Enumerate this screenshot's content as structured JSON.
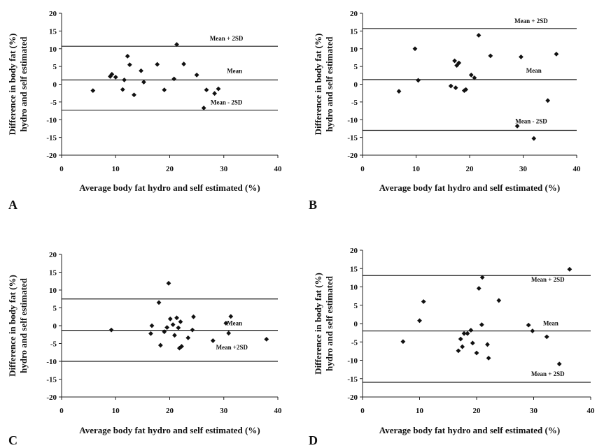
{
  "chart_data": [
    {
      "type": "scatter",
      "panel_label": "A",
      "xlabel": "Average body fat hydro and self estimated (%)",
      "ylabel": [
        "Difference in body fat (%)",
        "hydro and self estimated"
      ],
      "xlim": [
        0,
        40
      ],
      "ylim": [
        -20,
        20
      ],
      "xticks": [
        0,
        10,
        20,
        30,
        40
      ],
      "yticks": [
        20,
        15,
        10,
        5,
        0,
        -5,
        -10,
        -15,
        -20
      ],
      "grid": false,
      "marker_color": "#111111",
      "reference_lines": [
        {
          "label": "Mean + 2SD",
          "value": 10.7
        },
        {
          "label": "Mean",
          "value": 1.2
        },
        {
          "label": "Mean - 2SD",
          "value": -7.3
        }
      ],
      "points": [
        {
          "x": 5.8,
          "y": -1.8
        },
        {
          "x": 9.0,
          "y": 2.2
        },
        {
          "x": 9.3,
          "y": 2.8
        },
        {
          "x": 10.0,
          "y": 2.0
        },
        {
          "x": 11.3,
          "y": -1.5
        },
        {
          "x": 11.6,
          "y": 1.2
        },
        {
          "x": 12.2,
          "y": 7.9
        },
        {
          "x": 12.6,
          "y": 5.5
        },
        {
          "x": 13.4,
          "y": -3.0
        },
        {
          "x": 14.7,
          "y": 3.8
        },
        {
          "x": 15.2,
          "y": 0.6
        },
        {
          "x": 17.7,
          "y": 5.6
        },
        {
          "x": 19.0,
          "y": -1.6
        },
        {
          "x": 20.8,
          "y": 1.5
        },
        {
          "x": 21.3,
          "y": 11.2
        },
        {
          "x": 22.6,
          "y": 5.7
        },
        {
          "x": 25.0,
          "y": 2.6
        },
        {
          "x": 26.3,
          "y": -6.7
        },
        {
          "x": 26.8,
          "y": -1.6
        },
        {
          "x": 28.3,
          "y": -2.6
        },
        {
          "x": 29.0,
          "y": -1.3
        }
      ]
    },
    {
      "type": "scatter",
      "panel_label": "B",
      "xlabel": "Average body fat hydro and self estimated (%)",
      "ylabel": [
        "Difference in body fat (%)",
        "hydro and self estimated"
      ],
      "xlim": [
        0,
        40
      ],
      "ylim": [
        -20,
        20
      ],
      "xticks": [
        0,
        10,
        20,
        30,
        40
      ],
      "yticks": [
        20,
        15,
        10,
        5,
        0,
        -5,
        -10,
        -15,
        -20
      ],
      "grid": false,
      "marker_color": "#111111",
      "reference_lines": [
        {
          "label": "Mean + 2SD",
          "value": 15.7
        },
        {
          "label": "Mean",
          "value": 1.3
        },
        {
          "label": "Mean - 2SD",
          "value": -13.0
        }
      ],
      "points": [
        {
          "x": 6.8,
          "y": -2.0
        },
        {
          "x": 9.8,
          "y": 10.0
        },
        {
          "x": 10.4,
          "y": 1.1
        },
        {
          "x": 16.5,
          "y": -0.5
        },
        {
          "x": 17.2,
          "y": 6.6
        },
        {
          "x": 17.4,
          "y": -1.0
        },
        {
          "x": 17.6,
          "y": 5.3
        },
        {
          "x": 18.0,
          "y": 6.0
        },
        {
          "x": 19.0,
          "y": -1.8
        },
        {
          "x": 19.3,
          "y": -1.5
        },
        {
          "x": 20.3,
          "y": 2.6
        },
        {
          "x": 20.9,
          "y": 1.8
        },
        {
          "x": 21.7,
          "y": 13.8
        },
        {
          "x": 23.9,
          "y": 8.0
        },
        {
          "x": 28.9,
          "y": -11.8
        },
        {
          "x": 29.6,
          "y": 7.7
        },
        {
          "x": 32.0,
          "y": -15.3
        },
        {
          "x": 34.6,
          "y": -4.6
        },
        {
          "x": 36.2,
          "y": 8.5
        }
      ]
    },
    {
      "type": "scatter",
      "panel_label": "C",
      "xlabel": "Average body fat hydro and self estimated (%)",
      "ylabel": [
        "Difference in body fat (%)",
        "hydro and self estimated"
      ],
      "xlim": [
        0,
        40
      ],
      "ylim": [
        -20,
        20
      ],
      "xticks": [
        0,
        10,
        20,
        30,
        40
      ],
      "yticks": [
        20,
        15,
        10,
        5,
        0,
        -5,
        -10,
        -15,
        -20
      ],
      "grid": false,
      "marker_color": "#111111",
      "reference_lines": [
        {
          "label": "",
          "value": 7.5
        },
        {
          "label": "Mean",
          "value": -1.3
        },
        {
          "label": "Mean +2SD",
          "value": -10.0
        }
      ],
      "points": [
        {
          "x": 9.2,
          "y": -1.2
        },
        {
          "x": 16.5,
          "y": -2.2
        },
        {
          "x": 16.7,
          "y": 0.0
        },
        {
          "x": 18.0,
          "y": 6.5
        },
        {
          "x": 18.3,
          "y": -5.5
        },
        {
          "x": 19.0,
          "y": -1.7
        },
        {
          "x": 19.5,
          "y": -0.5
        },
        {
          "x": 19.8,
          "y": 11.9
        },
        {
          "x": 20.1,
          "y": 1.9
        },
        {
          "x": 20.6,
          "y": 0.3
        },
        {
          "x": 20.9,
          "y": -2.7
        },
        {
          "x": 21.3,
          "y": 2.2
        },
        {
          "x": 21.6,
          "y": -0.6
        },
        {
          "x": 21.8,
          "y": -6.3
        },
        {
          "x": 22.0,
          "y": 1.1
        },
        {
          "x": 22.2,
          "y": -5.8
        },
        {
          "x": 23.4,
          "y": -3.4
        },
        {
          "x": 24.2,
          "y": -1.2
        },
        {
          "x": 24.4,
          "y": 2.5
        },
        {
          "x": 28.0,
          "y": -4.2
        },
        {
          "x": 30.4,
          "y": 0.7
        },
        {
          "x": 30.9,
          "y": -2.1
        },
        {
          "x": 31.3,
          "y": 2.6
        },
        {
          "x": 37.9,
          "y": -3.8
        }
      ]
    },
    {
      "type": "scatter",
      "panel_label": "D",
      "xlabel": "Average body fat hydro and self estimated (%)",
      "ylabel": [
        "Difference in body fat (%)",
        "hydro and self estimated"
      ],
      "xlim": [
        0,
        40
      ],
      "ylim": [
        -20,
        20
      ],
      "xticks": [
        0,
        10,
        20,
        30,
        40
      ],
      "yticks": [
        20,
        15,
        10,
        5,
        0,
        -5,
        -10,
        -15,
        -20
      ],
      "grid": false,
      "marker_color": "#111111",
      "reference_lines": [
        {
          "label": "Mean + 2SD",
          "value": 13.1
        },
        {
          "label": "Mean",
          "value": -2.0
        },
        {
          "label": "Mean + 2SD",
          "value": -16.0
        }
      ],
      "points": [
        {
          "x": 7.1,
          "y": -4.9
        },
        {
          "x": 10.0,
          "y": 0.8
        },
        {
          "x": 10.7,
          "y": 6.0
        },
        {
          "x": 16.8,
          "y": -7.4
        },
        {
          "x": 17.2,
          "y": -4.2
        },
        {
          "x": 17.5,
          "y": -6.3
        },
        {
          "x": 17.8,
          "y": -2.7
        },
        {
          "x": 18.4,
          "y": -2.7
        },
        {
          "x": 19.0,
          "y": -1.8
        },
        {
          "x": 19.3,
          "y": -5.3
        },
        {
          "x": 20.0,
          "y": -8.0
        },
        {
          "x": 20.4,
          "y": 9.6
        },
        {
          "x": 20.9,
          "y": -0.3
        },
        {
          "x": 21.0,
          "y": 12.6
        },
        {
          "x": 21.9,
          "y": -5.7
        },
        {
          "x": 22.1,
          "y": -9.4
        },
        {
          "x": 23.9,
          "y": 6.3
        },
        {
          "x": 29.1,
          "y": -0.4
        },
        {
          "x": 29.8,
          "y": -2.0
        },
        {
          "x": 32.3,
          "y": -3.6
        },
        {
          "x": 34.5,
          "y": -11.0
        },
        {
          "x": 36.3,
          "y": 14.8
        }
      ]
    }
  ]
}
